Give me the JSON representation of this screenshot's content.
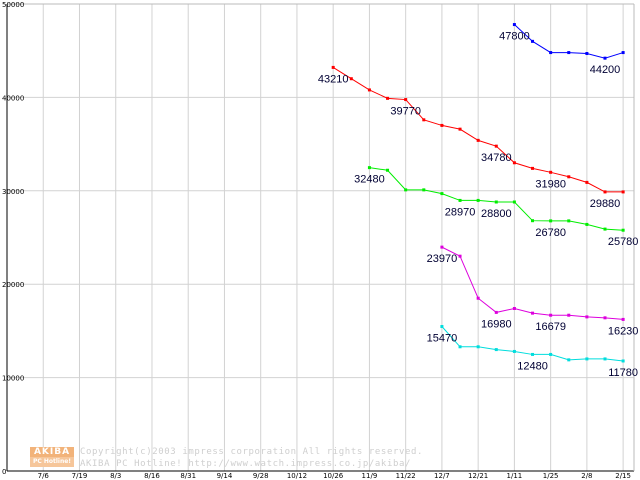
{
  "chart_data": {
    "type": "line",
    "ylim": [
      0,
      50000
    ],
    "y_ticks": [
      "0",
      "10000",
      "20000",
      "30000",
      "40000",
      "50000"
    ],
    "x_tick_labels": [
      "7/6",
      "7/19",
      "8/3",
      "8/16",
      "8/31",
      "9/14",
      "9/28",
      "10/12",
      "10/26",
      "11/9",
      "11/22",
      "12/7",
      "12/21",
      "1/11",
      "1/25",
      "2/8",
      "2/15"
    ],
    "grid": true,
    "x_start_index": 2,
    "series": [
      {
        "color": "#0000ff",
        "x": [
          13,
          13.5,
          14,
          14.5,
          15,
          15.5,
          16
        ],
        "values": [
          47800,
          46000,
          44800,
          44800,
          44700,
          44200,
          44800
        ]
      },
      {
        "color": "#ff0000",
        "x": [
          8,
          8.5,
          9,
          9.5,
          10,
          10.5,
          11,
          11.5,
          12,
          12.5,
          13,
          13.5,
          14,
          14.5,
          15,
          15.5,
          16
        ],
        "values": [
          43210,
          42000,
          40800,
          39900,
          39770,
          37600,
          37000,
          36600,
          35400,
          34780,
          33000,
          32400,
          31980,
          31500,
          30900,
          29880,
          29880
        ]
      },
      {
        "color": "#00ee00",
        "x": [
          9,
          9.5,
          10,
          10.5,
          11,
          11.5,
          12,
          12.5,
          13,
          13.5,
          14,
          14.5,
          15,
          15.5,
          16
        ],
        "values": [
          32480,
          32200,
          30100,
          30100,
          29700,
          28970,
          28970,
          28800,
          28800,
          26800,
          26780,
          26780,
          26400,
          25900,
          25780
        ]
      },
      {
        "color": "#dd00dd",
        "x": [
          11,
          11.5,
          12,
          12.5,
          13,
          13.5,
          14,
          14.5,
          15,
          15.5,
          16
        ],
        "values": [
          23970,
          23000,
          18500,
          16980,
          17400,
          16900,
          16679,
          16679,
          16500,
          16400,
          16230
        ]
      },
      {
        "color": "#00dddd",
        "x": [
          11,
          11.5,
          12,
          12.5,
          13,
          13.5,
          14,
          14.5,
          15,
          15.5,
          16
        ],
        "values": [
          15470,
          13300,
          13300,
          13000,
          12800,
          12480,
          12480,
          11900,
          12000,
          12000,
          11780
        ]
      }
    ],
    "data_labels": [
      {
        "text": "47800",
        "x": 13,
        "y": 47800
      },
      {
        "text": "44200",
        "x": 15.5,
        "y": 44200
      },
      {
        "text": "43210",
        "x": 8,
        "y": 43210
      },
      {
        "text": "39770",
        "x": 10,
        "y": 39770
      },
      {
        "text": "34780",
        "x": 12.5,
        "y": 34780
      },
      {
        "text": "31980",
        "x": 14,
        "y": 31980
      },
      {
        "text": "29880",
        "x": 15.5,
        "y": 29880
      },
      {
        "text": "32480",
        "x": 9,
        "y": 32480
      },
      {
        "text": "28970",
        "x": 11.5,
        "y": 28970
      },
      {
        "text": "28800",
        "x": 12.5,
        "y": 28800
      },
      {
        "text": "26780",
        "x": 14,
        "y": 26780
      },
      {
        "text": "25780",
        "x": 16,
        "y": 25780
      },
      {
        "text": "23970",
        "x": 11,
        "y": 23970
      },
      {
        "text": "16980",
        "x": 12.5,
        "y": 16980
      },
      {
        "text": "16679",
        "x": 14,
        "y": 16679
      },
      {
        "text": "16230",
        "x": 16,
        "y": 16230
      },
      {
        "text": "15470",
        "x": 11,
        "y": 15470
      },
      {
        "text": "12480",
        "x": 13.5,
        "y": 12480
      },
      {
        "text": "11780",
        "x": 16,
        "y": 11780
      }
    ]
  },
  "watermark": {
    "logo_top": "AKIBA",
    "logo_bottom": "PC Hotline!",
    "line1": "Copyright(c)2003 impress corporation All rights reserved.",
    "line2": "AKIBA PC Hotline!  http://www.watch.impress.co.jp/akiba/"
  }
}
